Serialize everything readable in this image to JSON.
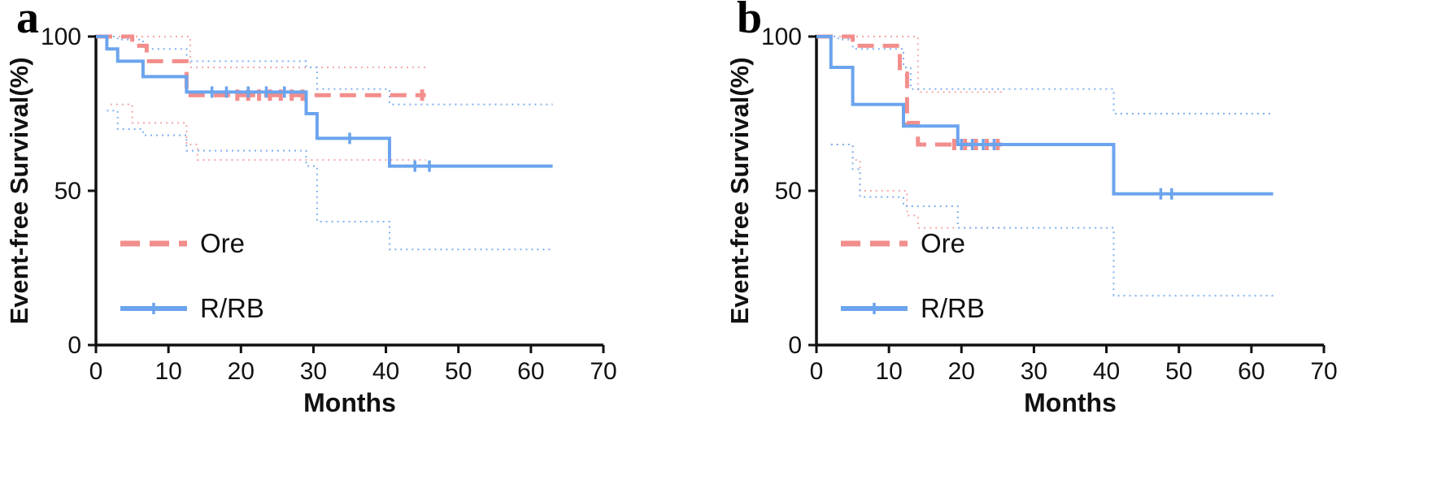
{
  "figure": {
    "panels": [
      {
        "label": "a"
      },
      {
        "label": "b"
      }
    ]
  },
  "chart_data": [
    {
      "panel_label": "a",
      "type": "line",
      "subtype": "kaplan-meier-step",
      "title": "",
      "xlabel": "Months",
      "ylabel": "Event-free Survival(%)",
      "xlim": [
        0,
        70
      ],
      "ylim": [
        0,
        100
      ],
      "xticks": [
        0,
        10,
        20,
        30,
        40,
        50,
        60,
        70
      ],
      "yticks": [
        0,
        50,
        100
      ],
      "grid": false,
      "legend_position": "inside-lower-left",
      "series": [
        {
          "name": "Ore",
          "style": "dashed",
          "color": "#f28e8c",
          "width": 5,
          "x": [
            0,
            5,
            7,
            12.5,
            45.5
          ],
          "y": [
            100,
            97,
            92,
            81,
            81
          ],
          "censors": [
            [
              19.5,
              81
            ],
            [
              21,
              81
            ],
            [
              22.5,
              81
            ],
            [
              24,
              81
            ],
            [
              25.5,
              81
            ],
            [
              27,
              81
            ],
            [
              28.5,
              81
            ],
            [
              45,
              81
            ]
          ]
        },
        {
          "name": "R/RB",
          "style": "solid",
          "color": "#6ba4ee",
          "width": 4,
          "x": [
            0,
            1.5,
            3,
            6.5,
            12.5,
            29,
            30.5,
            40.5,
            63
          ],
          "y": [
            100,
            96,
            92,
            87,
            82,
            75,
            67,
            58,
            58
          ],
          "censors": [
            [
              16,
              82
            ],
            [
              18,
              82
            ],
            [
              21,
              82
            ],
            [
              23.5,
              82
            ],
            [
              26,
              82
            ],
            [
              35,
              67
            ],
            [
              44,
              58
            ],
            [
              46,
              58
            ]
          ]
        }
      ],
      "ci_series": [
        {
          "name": "Ore-upper-ci",
          "color": "#f5a9a8",
          "x": [
            0,
            7,
            13,
            45.5
          ],
          "y": [
            100,
            100,
            90,
            90
          ]
        },
        {
          "name": "Ore-lower-ci",
          "color": "#f5a9a8",
          "x": [
            2,
            5,
            12.5,
            14,
            45.5
          ],
          "y": [
            78,
            72,
            65,
            60,
            60
          ]
        },
        {
          "name": "R/RB-upper-ci",
          "color": "#7db0f0",
          "x": [
            0,
            3,
            6.5,
            12.5,
            29,
            30.5,
            40.5,
            63
          ],
          "y": [
            100,
            99,
            96,
            92,
            90,
            83,
            78,
            78
          ]
        },
        {
          "name": "R/RB-lower-ci",
          "color": "#7db0f0",
          "x": [
            1.5,
            3,
            6.5,
            12.5,
            29,
            30.5,
            40.5,
            63
          ],
          "y": [
            76,
            70,
            68,
            63,
            58,
            40,
            31,
            31
          ]
        }
      ]
    },
    {
      "panel_label": "b",
      "type": "line",
      "subtype": "kaplan-meier-step",
      "title": "",
      "xlabel": "Months",
      "ylabel": "Event-free Survival(%)",
      "xlim": [
        0,
        70
      ],
      "ylim": [
        0,
        100
      ],
      "xticks": [
        0,
        10,
        20,
        30,
        40,
        50,
        60,
        70
      ],
      "yticks": [
        0,
        50,
        100
      ],
      "grid": false,
      "legend_position": "inside-lower-left",
      "series": [
        {
          "name": "Ore",
          "style": "dashed",
          "color": "#f28e8c",
          "width": 5,
          "x": [
            0,
            5,
            11.5,
            12.5,
            14,
            26
          ],
          "y": [
            100,
            97,
            88,
            72,
            65,
            65
          ],
          "censors": [
            [
              19,
              65
            ],
            [
              20.5,
              65
            ],
            [
              22,
              65
            ],
            [
              23.5,
              65
            ],
            [
              25,
              65
            ]
          ]
        },
        {
          "name": "R/RB",
          "style": "solid",
          "color": "#6ba4ee",
          "width": 4,
          "x": [
            0,
            2,
            5,
            12,
            19.5,
            41,
            63
          ],
          "y": [
            100,
            90,
            78,
            71,
            65,
            49,
            49
          ],
          "censors": [
            [
              20,
              65
            ],
            [
              21.5,
              65
            ],
            [
              23,
              65
            ],
            [
              24.5,
              65
            ],
            [
              47.5,
              49
            ],
            [
              49,
              49
            ]
          ]
        }
      ],
      "ci_series": [
        {
          "name": "Ore-upper-ci",
          "color": "#f5a9a8",
          "x": [
            0,
            13,
            14,
            26
          ],
          "y": [
            100,
            100,
            82,
            82
          ]
        },
        {
          "name": "Ore-lower-ci",
          "color": "#f5a9a8",
          "x": [
            2,
            5,
            6,
            12.5,
            14,
            26
          ],
          "y": [
            65,
            60,
            50,
            42,
            38,
            38
          ]
        },
        {
          "name": "R/RB-upper-ci",
          "color": "#7db0f0",
          "x": [
            0,
            3,
            5,
            12,
            13,
            41,
            63
          ],
          "y": [
            100,
            99,
            96,
            90,
            83,
            75,
            75
          ]
        },
        {
          "name": "R/RB-lower-ci",
          "color": "#7db0f0",
          "x": [
            2,
            5,
            6,
            12,
            19.5,
            41,
            63
          ],
          "y": [
            65,
            57,
            48,
            45,
            38,
            16,
            16
          ]
        }
      ]
    }
  ]
}
